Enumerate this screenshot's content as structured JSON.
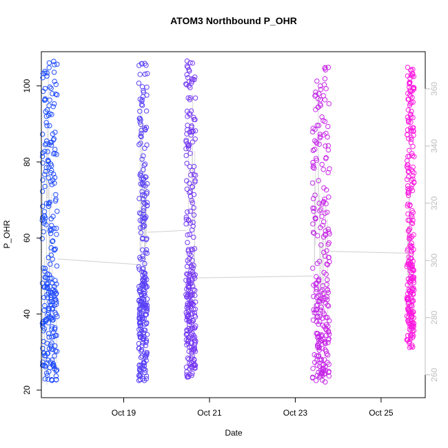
{
  "chart_data": {
    "type": "scatter",
    "title": "ATOM3 Northbound P_OHR",
    "xlabel": "Date",
    "ylabel": "P_OHR",
    "x_ticks": [
      {
        "label": "Oct 19",
        "day": 19
      },
      {
        "label": "Oct 21",
        "day": 21
      },
      {
        "label": "Oct 23",
        "day": 23
      },
      {
        "label": "Oct 25",
        "day": 25
      }
    ],
    "xlim_days": [
      17.08,
      26.03
    ],
    "left_axis": {
      "ticks": [
        20,
        40,
        60,
        80,
        100
      ],
      "ylim": [
        18,
        109
      ]
    },
    "right_axis": {
      "ticks": [
        260,
        280,
        300,
        320,
        340,
        360
      ],
      "ylim": [
        252,
        373
      ],
      "color": "#bdbdbd"
    },
    "grid": false,
    "series": [
      {
        "x_start": 17.1,
        "x_end": 17.45,
        "y_min": 21,
        "y_max": 107,
        "line_y": 54.5
      },
      {
        "x_start": 19.35,
        "x_end": 19.55,
        "y_min": 22,
        "y_max": 106,
        "line_y": 53
      },
      {
        "x_start": 20.45,
        "x_end": 20.68,
        "y_min": 23,
        "y_max": 107,
        "line_y": 49.5
      },
      {
        "x_start": 23.4,
        "x_end": 23.8,
        "y_min": 22,
        "y_max": 105,
        "line_y": 51
      },
      {
        "x_start": 25.6,
        "x_end": 25.77,
        "y_min": 31,
        "y_max": 105,
        "line_y": 56
      }
    ],
    "gray_series": [
      {
        "from_day": 17.45,
        "to_day": 19.35,
        "from_y": 54.5,
        "to_y": 53
      },
      {
        "from_day": 19.55,
        "to_day": 20.45,
        "from_y": 61.5,
        "to_y": 62
      },
      {
        "from_day": 20.68,
        "to_day": 23.4,
        "from_y": 49.5,
        "to_y": 50
      },
      {
        "from_day": 23.8,
        "to_day": 25.6,
        "from_y": 56.5,
        "to_y": 56
      }
    ],
    "colors": {
      "start": "#1a4dff",
      "end": "#ff1ae0",
      "gray_line": "#cfcfcf"
    }
  }
}
